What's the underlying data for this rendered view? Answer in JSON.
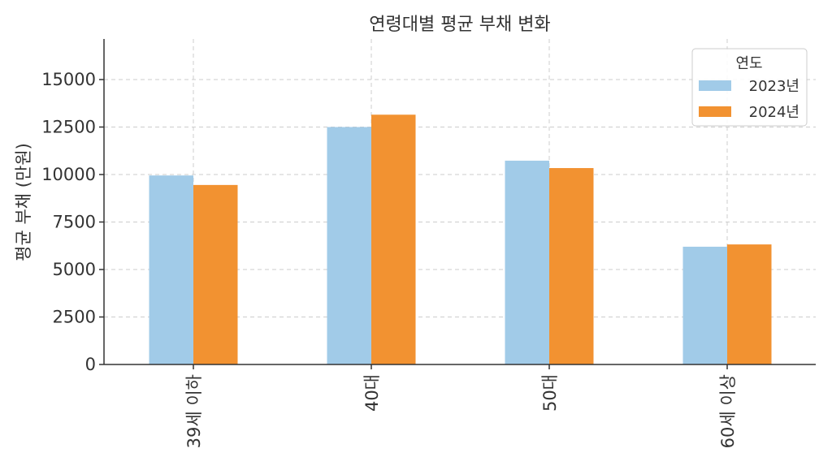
{
  "chart_data": {
    "type": "bar",
    "title": "연령대별 평균 부채 변화",
    "xlabel": "",
    "ylabel": "평균 부채 (만원)",
    "ylim": [
      0,
      17100
    ],
    "yticks": [
      0,
      2500,
      5000,
      7500,
      10000,
      12500,
      15000
    ],
    "categories": [
      "39세 이하",
      "40대",
      "50대",
      "60세 이상"
    ],
    "series": [
      {
        "name": "2023년",
        "color": "#a1cbe8",
        "values": [
          9950,
          12500,
          10730,
          6200
        ]
      },
      {
        "name": "2024년",
        "color": "#f29231",
        "values": [
          9450,
          13150,
          10340,
          6320
        ]
      }
    ],
    "legend": {
      "title": "연도",
      "position": "upper right"
    },
    "grid": true
  }
}
